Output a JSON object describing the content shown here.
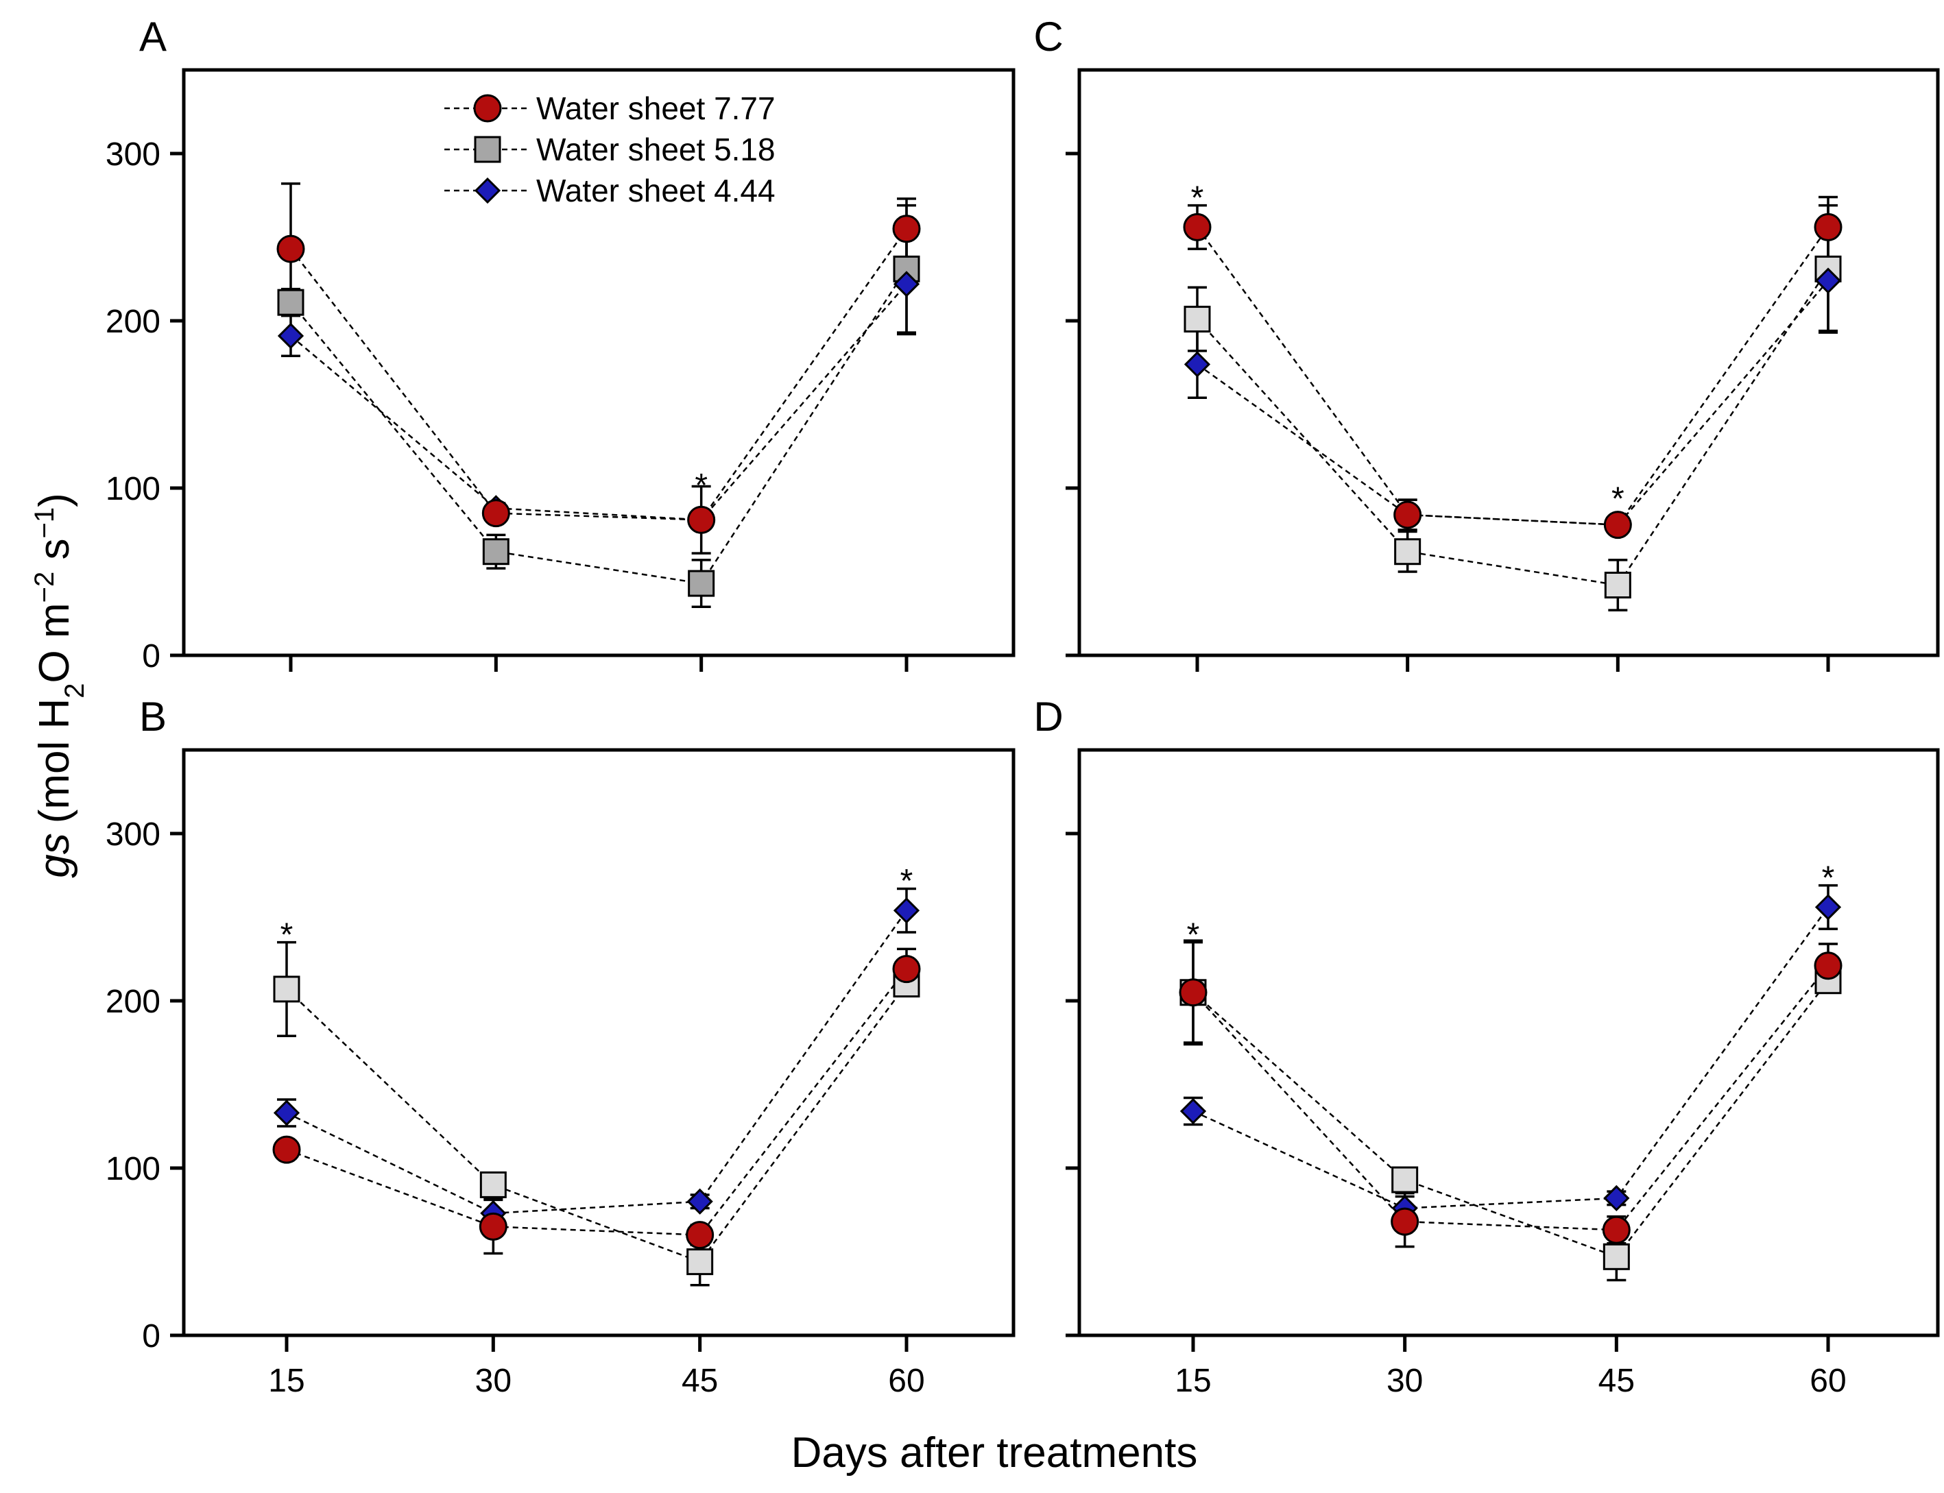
{
  "chart_data": {
    "type": "line",
    "ylabel_main": "gs",
    "ylabel_unit": "(mol H",
    "ylabel_sub": "2",
    "ylabel_unit2": "O m",
    "ylabel_sup1": "−2",
    "ylabel_unit3": " s",
    "ylabel_sup2": "−1",
    "ylabel_close": ")",
    "xlabel": "Days after treatments",
    "x": [
      15,
      30,
      45,
      60
    ],
    "x_tick_labels": [
      "15",
      "30",
      "45",
      "60"
    ],
    "ylim": [
      0,
      350
    ],
    "y_ticks": [
      0,
      100,
      200,
      300
    ],
    "y_tick_labels": [
      "0",
      "100",
      "200",
      "300"
    ],
    "legend": {
      "placement": "top-left inside panel A",
      "entries": [
        "Water sheet 7.77",
        "Water sheet 5.18",
        "Water sheet 4.44"
      ]
    },
    "series_styles": [
      {
        "name": "Water sheet 7.77",
        "marker": "circle",
        "color": "#b30d0d"
      },
      {
        "name": "Water sheet 5.18",
        "marker": "square",
        "color": "#a6a6a6",
        "color_light": "#dcdcdc"
      },
      {
        "name": "Water sheet 4.44",
        "marker": "diamond",
        "color": "#1c1cb8"
      }
    ],
    "panels": [
      {
        "label": "A",
        "show_y_tick_labels": true,
        "show_x_tick_labels": false,
        "square_fill": "dark",
        "significance": [
          {
            "x": 45,
            "y": 100,
            "text": "*"
          }
        ],
        "series": [
          {
            "name": "Water sheet 7.77",
            "values": [
              243,
              85,
              81,
              255
            ],
            "errors": [
              39,
              5,
              20,
              18
            ]
          },
          {
            "name": "Water sheet 5.18",
            "values": [
              211,
              62,
              43,
              231
            ],
            "errors": [
              8,
              10,
              14,
              38
            ]
          },
          {
            "name": "Water sheet 4.44",
            "values": [
              191,
              88,
              81,
              222
            ],
            "errors": [
              12,
              3,
              5,
              30
            ]
          }
        ]
      },
      {
        "label": "C",
        "show_y_tick_labels": false,
        "show_x_tick_labels": false,
        "square_fill": "light",
        "significance": [
          {
            "x": 15,
            "y": 272,
            "text": "*"
          },
          {
            "x": 45,
            "y": 92,
            "text": "*"
          }
        ],
        "series": [
          {
            "name": "Water sheet 7.77",
            "values": [
              256,
              84,
              78,
              256
            ],
            "errors": [
              13,
              9,
              4,
              18
            ]
          },
          {
            "name": "Water sheet 5.18",
            "values": [
              201,
              62,
              42,
              231
            ],
            "errors": [
              19,
              12,
              15,
              38
            ]
          },
          {
            "name": "Water sheet 4.44",
            "values": [
              174,
              84,
              78,
              224
            ],
            "errors": [
              20,
              9,
              3,
              30
            ]
          }
        ]
      },
      {
        "label": "B",
        "show_y_tick_labels": true,
        "show_x_tick_labels": true,
        "square_fill": "light",
        "significance": [
          {
            "x": 15,
            "y": 238,
            "text": "*"
          },
          {
            "x": 60,
            "y": 270,
            "text": "*"
          }
        ],
        "series": [
          {
            "name": "Water sheet 7.77",
            "values": [
              111,
              65,
              60,
              219
            ],
            "errors": [
              4,
              16,
              6,
              12
            ]
          },
          {
            "name": "Water sheet 5.18",
            "values": [
              207,
              90,
              44,
              210
            ],
            "errors": [
              28,
              6,
              14,
              6
            ]
          },
          {
            "name": "Water sheet 4.44",
            "values": [
              133,
              73,
              80,
              254
            ],
            "errors": [
              8,
              9,
              4,
              13
            ]
          }
        ]
      },
      {
        "label": "D",
        "show_y_tick_labels": false,
        "show_x_tick_labels": true,
        "square_fill": "light",
        "significance": [
          {
            "x": 15,
            "y": 238,
            "text": "*"
          },
          {
            "x": 60,
            "y": 272,
            "text": "*"
          }
        ],
        "series": [
          {
            "name": "Water sheet 7.77",
            "values": [
              205,
              68,
              63,
              221
            ],
            "errors": [
              31,
              15,
              8,
              13
            ]
          },
          {
            "name": "Water sheet 5.18",
            "values": [
              205,
              93,
              47,
              212
            ],
            "errors": [
              30,
              6,
              14,
              6
            ]
          },
          {
            "name": "Water sheet 4.44",
            "values": [
              134,
              76,
              82,
              256
            ],
            "errors": [
              8,
              9,
              4,
              13
            ]
          }
        ]
      }
    ]
  }
}
